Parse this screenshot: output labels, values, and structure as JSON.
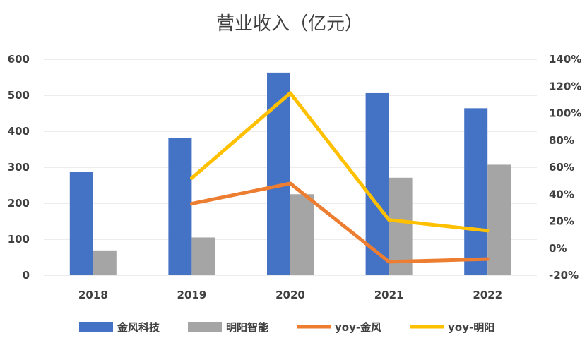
{
  "chart_data": {
    "type": "bar",
    "title": "营业收入（亿元）",
    "categories": [
      "2018",
      "2019",
      "2020",
      "2021",
      "2022"
    ],
    "series": [
      {
        "name": "金风科技",
        "kind": "bar",
        "axis": "left",
        "color": "#4472c4",
        "values": [
          287,
          381,
          563,
          506,
          464
        ]
      },
      {
        "name": "明阳智能",
        "kind": "bar",
        "axis": "left",
        "color": "#a5a5a5",
        "values": [
          69,
          105,
          225,
          271,
          307
        ]
      },
      {
        "name": "yoy-金风",
        "kind": "line",
        "axis": "right",
        "color": "#ed7d31",
        "values": [
          null,
          33,
          48,
          -10,
          -8
        ]
      },
      {
        "name": "yoy-明阳",
        "kind": "line",
        "axis": "right",
        "color": "#ffc000",
        "values": [
          null,
          52,
          115,
          21,
          13
        ]
      }
    ],
    "ylim": [
      0,
      600
    ],
    "y_ticks": [
      "0",
      "100",
      "200",
      "300",
      "400",
      "500",
      "600"
    ],
    "y2lim": [
      -20,
      140
    ],
    "y2_ticks": [
      "-20%",
      "0%",
      "20%",
      "40%",
      "60%",
      "80%",
      "100%",
      "120%",
      "140%"
    ],
    "grid": true,
    "legend_position": "bottom"
  }
}
